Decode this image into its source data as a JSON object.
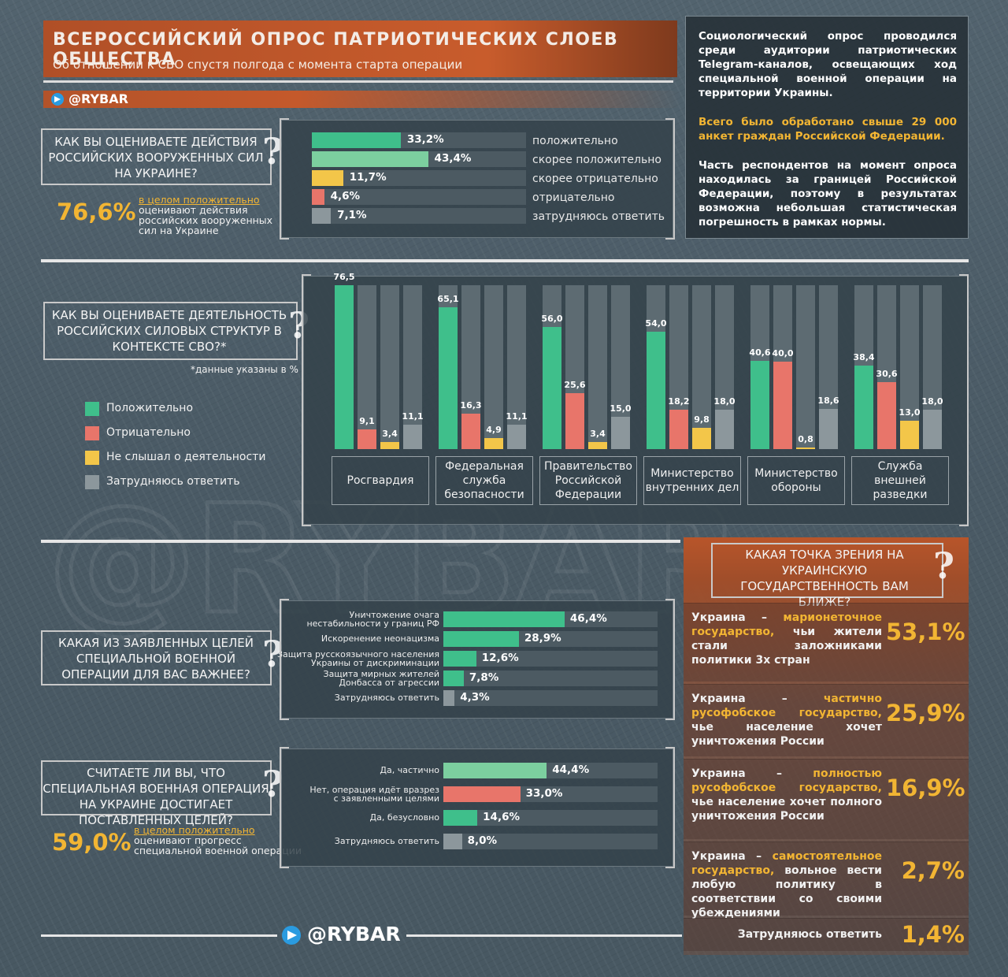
{
  "header": {
    "title": "ВСЕРОССИЙСКИЙ ОПРОС ПАТРИОТИЧЕСКИХ СЛОЕВ ОБЩЕСТВА",
    "subtitle": "Об отношении к СВО спустя полгода с момента старта операции",
    "brand": "@RYBAR"
  },
  "info": {
    "p1": "Социологический опрос проводился среди аудитории патриотических Telegram-каналов, освещающих ход специальной военной операции на территории Украины.",
    "p2": "Всего было обработано свыше 29 000 анкет граждан Российской Федерации.",
    "p3": "Часть респондентов на момент опроса находилась за границей Российской Федерации, поэтому в результатах возможна небольшая статистическая погрешность в рамках нормы."
  },
  "q1": {
    "question": "КАК ВЫ ОЦЕНИВАЕТЕ ДЕЙСТВИЯ РОССИЙСКИХ ВООРУЖЕННЫХ СИЛ НА УКРАИНЕ?",
    "big": "76,6%",
    "highlight": "в целом положительно",
    "note": "оценивают действия российских вооруженных сил на Украине",
    "note_lines": [
      "оценивают действия",
      "российских вооруженных",
      "сил на Украине"
    ]
  },
  "q2": {
    "question": "КАК ВЫ ОЦЕНИВАЕТЕ ДЕЯТЕЛЬНОСТЬ РОССИЙСКИХ СИЛОВЫХ СТРУКТУР В КОНТЕКСТЕ СВО?*",
    "footnote": "*данные указаны в %"
  },
  "q3": {
    "question": "КАКАЯ ИЗ ЗАЯВЛЕННЫХ ЦЕЛЕЙ СПЕЦИАЛЬНОЙ ВОЕННОЙ ОПЕРАЦИИ ДЛЯ ВАС ВАЖНЕЕ?"
  },
  "q4": {
    "question": "СЧИТАЕТЕ ЛИ ВЫ, ЧТО СПЕЦИАЛЬНАЯ ВОЕННАЯ ОПЕРАЦИЯ НА УКРАИНЕ ДОСТИГАЕТ ПОСТАВЛЕННЫХ ЦЕЛЕЙ?",
    "big": "59,0%",
    "highlight": "в целом положительно",
    "note": "оценивают прогресс специальной военной операции",
    "note_lines": [
      "оценивают прогресс",
      "специальной военной операции"
    ]
  },
  "q5": {
    "question": "КАКАЯ ТОЧКА ЗРЕНИЯ НА УКРАИНСКУЮ ГОСУДАРСТВЕННОСТЬ ВАМ БЛИЖЕ?",
    "rows": [
      {
        "pre": "Украина –",
        "hl": "марионеточное государство,",
        "post": "чьи жители стали заложниками политики 3х стран",
        "pct": "53,1%"
      },
      {
        "pre": "Украина –",
        "hl": "частично русофобское государство,",
        "post": "чье население хочет уничтожения России",
        "pct": "25,9%"
      },
      {
        "pre": "Украина –",
        "hl": "полностью русофобское государство,",
        "post": "чье население хочет полного уничтожения России",
        "pct": "16,9%"
      },
      {
        "pre": "Украина –",
        "hl": "самостоятельное государство,",
        "post": "вольное вести любую политику в соответствии со своими убеждениями",
        "pct": "2,7%"
      },
      {
        "pre": "Затрудняюсь ответить",
        "hl": "",
        "post": "",
        "pct": "1,4%"
      }
    ]
  },
  "legend": [
    "Положительно",
    "Отрицательно",
    "Не слышал о деятельности",
    "Затрудняюсь ответить"
  ],
  "colors": {
    "green": "#3fbf8b",
    "red": "#e8756a",
    "yellow": "#f3c649",
    "gray": "#8c979c",
    "lightgreen": "#7ccf9f",
    "orange": "#f2b533",
    "accent": "#c35a2b"
  },
  "chart_data": [
    {
      "type": "bar",
      "title": "КАК ВЫ ОЦЕНИВАЕТЕ ДЕЙСТВИЯ РОССИЙСКИХ ВООРУЖЕННЫХ СИЛ НА УКРАИНЕ?",
      "categories": [
        "положительно",
        "скорее положительно",
        "скорее отрицательно",
        "отрицательно",
        "затрудняюсь ответить"
      ],
      "values": [
        33.2,
        43.4,
        11.7,
        4.6,
        7.1
      ],
      "labels": [
        "33,2%",
        "43,4%",
        "11,7%",
        "4,6%",
        "7,1%"
      ],
      "colors": [
        "#3fbf8b",
        "#7ccf9f",
        "#f3c649",
        "#e8756a",
        "#8c979c"
      ],
      "xlim": [
        0,
        100
      ]
    },
    {
      "type": "bar",
      "title": "КАК ВЫ ОЦЕНИВАЕТЕ ДЕЯТЕЛЬНОСТЬ РОССИЙСКИХ СИЛОВЫХ СТРУКТУР В КОНТЕКСТЕ СВО?*",
      "categories": [
        "Росгвардия",
        "Федеральная служба безопасности",
        "Правительство Российской Федерации",
        "Министерство внутренних дел",
        "Министерство обороны",
        "Служба внешней разведки"
      ],
      "ylim": [
        0,
        100
      ],
      "series": [
        {
          "name": "Положительно",
          "color": "#3fbf8b",
          "values": [
            76.5,
            65.1,
            56.0,
            54.0,
            40.6,
            38.4
          ],
          "labels": [
            "76,5",
            "65,1",
            "56,0",
            "54,0",
            "40,6",
            "38,4"
          ]
        },
        {
          "name": "Отрицательно",
          "color": "#e8756a",
          "values": [
            9.1,
            16.3,
            25.6,
            18.2,
            40.0,
            30.6
          ],
          "labels": [
            "9,1",
            "16,3",
            "25,6",
            "18,2",
            "40,0",
            "30,6"
          ]
        },
        {
          "name": "Не слышал о деятельности",
          "color": "#f3c649",
          "values": [
            3.4,
            4.9,
            3.4,
            9.8,
            0.8,
            13.0
          ],
          "labels": [
            "3,4",
            "4,9",
            "3,4",
            "9,8",
            "0,8",
            "13,0"
          ]
        },
        {
          "name": "Затрудняюсь ответить",
          "color": "#8c979c",
          "values": [
            11.1,
            11.1,
            15.0,
            18.0,
            18.6,
            18.0
          ],
          "labels": [
            "11,1",
            "11,1",
            "15,0",
            "18,0",
            "18,6",
            "18,0"
          ]
        }
      ]
    },
    {
      "type": "bar",
      "title": "КАКАЯ ИЗ ЗАЯВЛЕННЫХ ЦЕЛЕЙ СПЕЦИАЛЬНОЙ ВОЕННОЙ ОПЕРАЦИИ ДЛЯ ВАС ВАЖНЕЕ?",
      "categories": [
        "Уничтожение очага нестабильности у границ РФ",
        "Искоренение неонацизма",
        "Защита русскоязычного населения Украины от дискриминации",
        "Защита мирных жителей Донбасса от агрессии",
        "Затрудняюсь ответить"
      ],
      "values": [
        46.4,
        28.9,
        12.6,
        7.8,
        4.3
      ],
      "labels": [
        "46,4%",
        "28,9%",
        "12,6%",
        "7,8%",
        "4,3%"
      ],
      "colors": [
        "#3fbf8b",
        "#3fbf8b",
        "#3fbf8b",
        "#3fbf8b",
        "#8c979c"
      ],
      "xlim": [
        0,
        100
      ]
    },
    {
      "type": "bar",
      "title": "СЧИТАЕТЕ ЛИ ВЫ, ЧТО СПЕЦИАЛЬНАЯ ВОЕННАЯ ОПЕРАЦИЯ НА УКРАИНЕ ДОСТИГАЕТ ПОСТАВЛЕННЫХ ЦЕЛЕЙ?",
      "categories": [
        "Да, частично",
        "Нет, операция идёт вразрез с заявленными целями",
        "Да, безусловно",
        "Затрудняюсь ответить"
      ],
      "values": [
        44.4,
        33.0,
        14.6,
        8.0
      ],
      "labels": [
        "44,4%",
        "33,0%",
        "14,6%",
        "8,0%"
      ],
      "colors": [
        "#7ccf9f",
        "#e8756a",
        "#3fbf8b",
        "#8c979c"
      ],
      "xlim": [
        0,
        100
      ]
    },
    {
      "type": "table",
      "title": "КАКАЯ ТОЧКА ЗРЕНИЯ НА УКРАИНСКУЮ ГОСУДАРСТВЕННОСТЬ ВАМ БЛИЖЕ?",
      "categories": [
        "Украина – марионеточное государство, чьи жители стали заложниками политики 3х стран",
        "Украина – частично русофобское государство, чье население хочет уничтожения России",
        "Украина – полностью русофобское государство, чье население хочет полного уничтожения России",
        "Украина – самостоятельное государство, вольное вести любую политику в соответствии со своими убеждениями",
        "Затрудняюсь ответить"
      ],
      "values": [
        53.1,
        25.9,
        16.9,
        2.7,
        1.4
      ]
    }
  ],
  "chart_labels": {
    "q3": [
      "Уничтожение очага\nнестабильности у границ РФ",
      "Искоренение неонацизма",
      "Защита русскоязычного населения\nУкраины от дискриминации",
      "Защита мирных жителей\nДонбасса от агрессии",
      "Затрудняюсь ответить"
    ],
    "q4": [
      "Да, частично",
      "Нет, операция идёт вразрез\nс заявленными целями",
      "Да, безусловно",
      "Затрудняюсь ответить"
    ],
    "q2cats": [
      "Росгвардия",
      "Федеральная\nслужба\nбезопасности",
      "Правительство\nРоссийской\nФедерации",
      "Министерство\nвнутренних дел",
      "Министерство\nобороны",
      "Служба\nвнешней\nразведки"
    ]
  }
}
